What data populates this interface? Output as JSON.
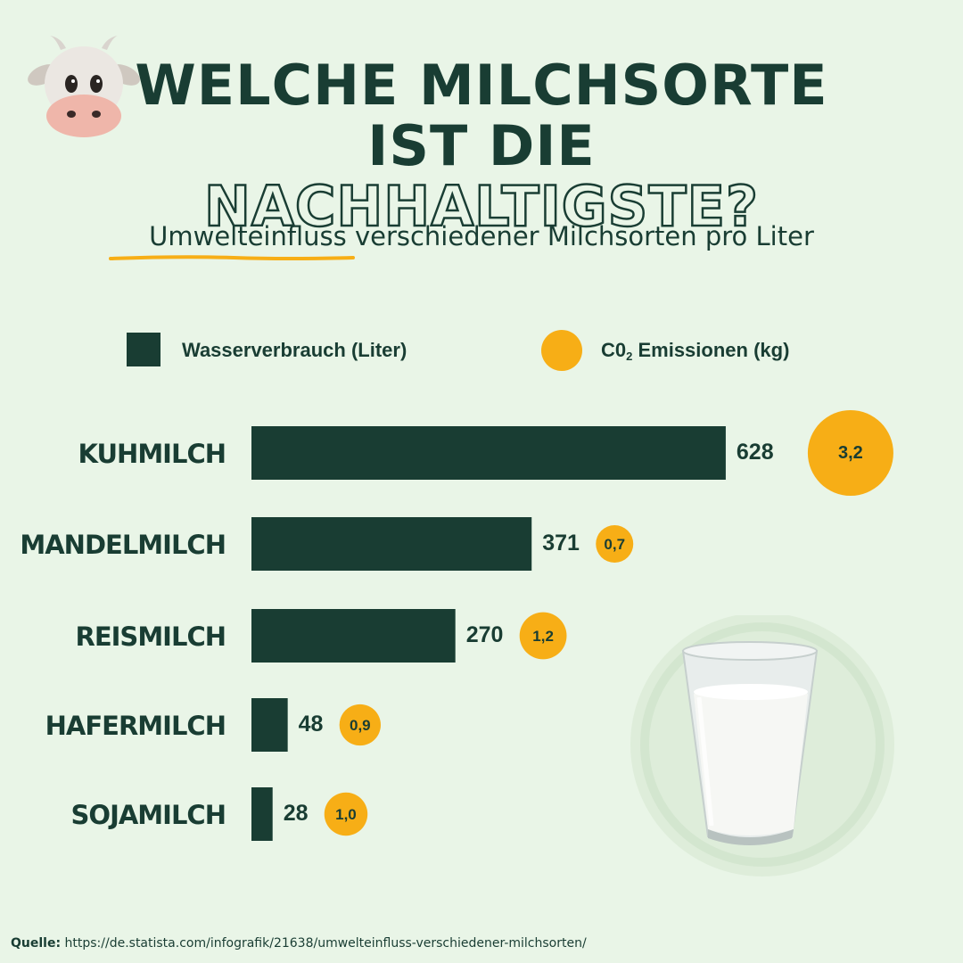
{
  "header": {
    "title_line1": "WELCHE MILCHSORTE",
    "title_line2_solid": "IST DIE ",
    "title_line2_outline": "NACHHALTIGSTE?",
    "subtitle": "Umwelteinfluss verschiedener Milchsorten pro Liter"
  },
  "legend": {
    "water_label": "Wasserverbrauch (Liter)",
    "co2_prefix": "C0",
    "co2_sub": "2",
    "co2_suffix": " Emissionen (kg)"
  },
  "chart_data": {
    "type": "bar",
    "categories": [
      "KUHMILCH",
      "MANDELMILCH",
      "REISMILCH",
      "HAFERMILCH",
      "SOJAMILCH"
    ],
    "series": [
      {
        "name": "Wasserverbrauch (Liter)",
        "values": [
          628,
          371,
          270,
          48,
          28
        ],
        "color": "#193d33"
      },
      {
        "name": "C02 Emissionen (kg)",
        "values": [
          3.2,
          0.7,
          1.2,
          0.9,
          1.0
        ],
        "labels": [
          "3,2",
          "0,7",
          "1,2",
          "0,9",
          "1,0"
        ],
        "color": "#f7ae16"
      }
    ]
  },
  "colors": {
    "background": "#e9f5e7",
    "dark_green": "#193d33",
    "accent_yellow": "#f7ae16"
  },
  "icons": [
    "cow-face-icon",
    "milk-glass-icon"
  ],
  "source": {
    "label": "Quelle:",
    "text": " https://de.statista.com/infografik/21638/umwelteinfluss-verschiedener-milchsorten/"
  }
}
